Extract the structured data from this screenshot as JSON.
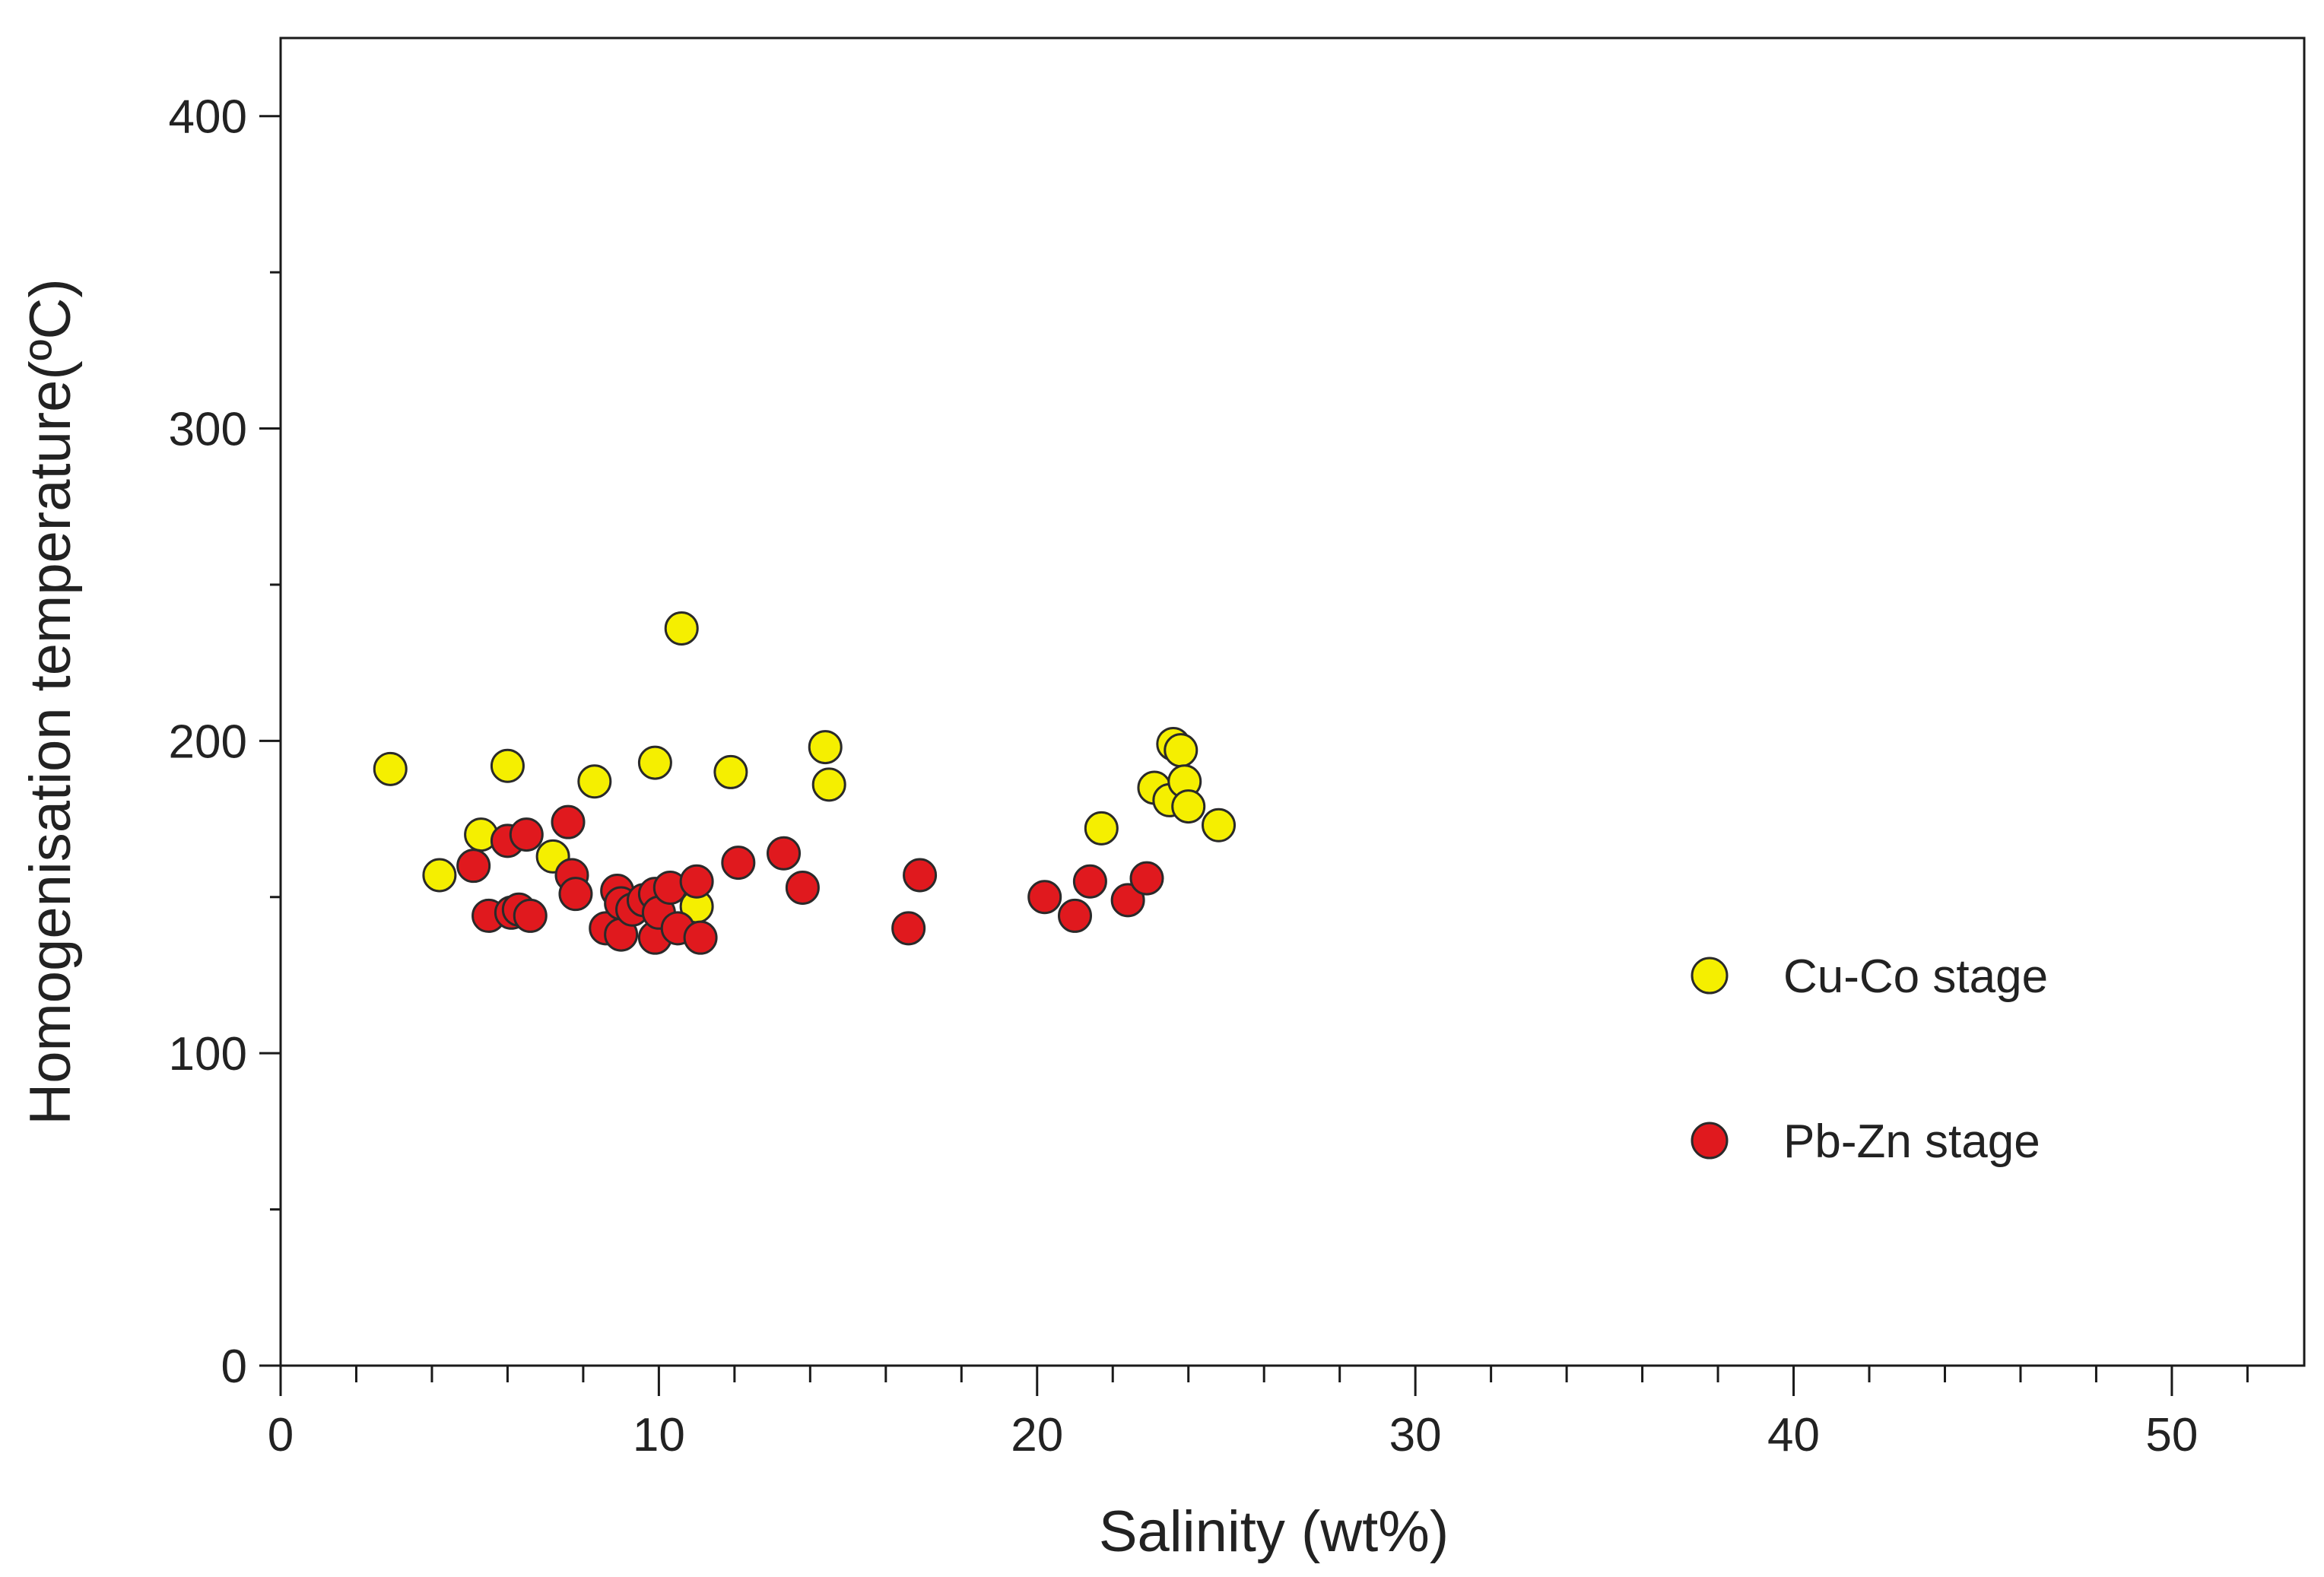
{
  "chart_data": {
    "type": "scatter",
    "xlabel": "Salinity (wt%)",
    "ylabel": "Homogenisation temperature(ºC)",
    "xlim": [
      0,
      53.5
    ],
    "ylim": [
      0,
      425
    ],
    "x_ticks": [
      "0",
      "10",
      "20",
      "30",
      "40",
      "50"
    ],
    "y_ticks": [
      "0",
      "100",
      "200",
      "300",
      "400"
    ],
    "grid": false,
    "legend_position": "right",
    "series": [
      {
        "name": "Cu-Co stage",
        "color": "#f5ef00",
        "x": [
          2.9,
          4.2,
          5.3,
          6.0,
          7.2,
          8.3,
          9.9,
          10.6,
          11.9,
          14.4,
          14.5,
          11.0,
          21.7,
          23.1,
          23.5,
          23.6,
          23.8,
          23.9,
          24.0,
          24.8
        ],
        "y": [
          191,
          157,
          170,
          192,
          163,
          187,
          193,
          236,
          190,
          198,
          186,
          147,
          172,
          185,
          181,
          199,
          197,
          187,
          179,
          173
        ]
      },
      {
        "name": "Pb-Zn stage",
        "color": "#e0191e",
        "x": [
          5.1,
          5.5,
          6.0,
          6.1,
          6.3,
          6.5,
          6.6,
          7.6,
          7.7,
          7.8,
          8.6,
          8.9,
          9.0,
          9.0,
          9.3,
          9.6,
          9.9,
          9.9,
          10.0,
          10.3,
          10.5,
          11.0,
          11.1,
          12.1,
          13.3,
          13.8,
          16.6,
          16.9,
          20.2,
          21.0,
          21.4,
          22.4,
          22.9
        ],
        "y": [
          160,
          144,
          168,
          145,
          146,
          170,
          144,
          174,
          157,
          151,
          140,
          152,
          138,
          148,
          146,
          149,
          137,
          151,
          145,
          153,
          140,
          155,
          137,
          161,
          164,
          153,
          140,
          157,
          150,
          144,
          155,
          149,
          156
        ]
      }
    ]
  }
}
